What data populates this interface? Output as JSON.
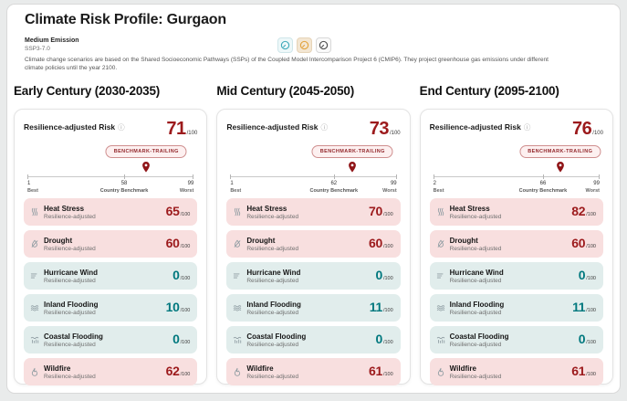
{
  "window": {
    "title": "Climate Risk Profile: Gurgaon"
  },
  "scenario": {
    "name": "Medium Emission",
    "code": "SSP3-7.0",
    "description": "Climate change scenarios are based on the Shared Socioeconomic Pathways (SSPs) of the Coupled Model Intercomparison Project 6 (CMIP6). They project greenhouse gas emissions under different climate policies until the year 2100.",
    "selector": [
      {
        "id": "low-emission",
        "icon": "gauge-low-icon",
        "color": "#3fa9b9",
        "selected": false
      },
      {
        "id": "medium-emission",
        "icon": "gauge-medium-icon",
        "color": "#e2a23c",
        "selected": true
      },
      {
        "id": "high-emission",
        "icon": "gauge-high-icon",
        "color": "#4b4b4b",
        "selected": false
      }
    ]
  },
  "colors": {
    "score_red": "#9c1a1c",
    "value_teal": "#00787e",
    "row_high_bg": "#f8dfdf",
    "row_low_bg": "#e1edec",
    "pin": "#8f1417",
    "badge_text": "#93282c"
  },
  "cards": [
    {
      "heading": "Early Century (2030-2035)",
      "risk_title": "Resilience-adjusted Risk",
      "score": "71",
      "score_suffix": "/100",
      "badge": "BENCHMARK-TRAILING",
      "scale": {
        "min": "1",
        "min_label": "Best",
        "max": "99",
        "max_label": "Worst",
        "benchmark": "58",
        "benchmark_label": "Country Benchmark",
        "pin_value": 71
      },
      "rows": [
        {
          "icon": "heat-stress-icon",
          "title": "Heat Stress",
          "subtitle": "Resilience-adjusted",
          "value": "65",
          "suffix": "/100",
          "severity": "high"
        },
        {
          "icon": "drought-icon",
          "title": "Drought",
          "subtitle": "Resilience-adjusted",
          "value": "60",
          "suffix": "/100",
          "severity": "high"
        },
        {
          "icon": "hurricane-wind-icon",
          "title": "Hurricane Wind",
          "subtitle": "Resilience-adjusted",
          "value": "0",
          "suffix": "/100",
          "severity": "low"
        },
        {
          "icon": "inland-flooding-icon",
          "title": "Inland Flooding",
          "subtitle": "Resilience-adjusted",
          "value": "10",
          "suffix": "/100",
          "severity": "low"
        },
        {
          "icon": "coastal-flooding-icon",
          "title": "Coastal Flooding",
          "subtitle": "Resilience-adjusted",
          "value": "0",
          "suffix": "/100",
          "severity": "low"
        },
        {
          "icon": "wildfire-icon",
          "title": "Wildfire",
          "subtitle": "Resilience-adjusted",
          "value": "62",
          "suffix": "/100",
          "severity": "high"
        }
      ]
    },
    {
      "heading": "Mid Century (2045-2050)",
      "risk_title": "Resilience-adjusted Risk",
      "score": "73",
      "score_suffix": "/100",
      "badge": "BENCHMARK-TRAILING",
      "scale": {
        "min": "1",
        "min_label": "Best",
        "max": "99",
        "max_label": "Worst",
        "benchmark": "62",
        "benchmark_label": "Country Benchmark",
        "pin_value": 73
      },
      "rows": [
        {
          "icon": "heat-stress-icon",
          "title": "Heat Stress",
          "subtitle": "Resilience-adjusted",
          "value": "70",
          "suffix": "/100",
          "severity": "high"
        },
        {
          "icon": "drought-icon",
          "title": "Drought",
          "subtitle": "Resilience-adjusted",
          "value": "60",
          "suffix": "/100",
          "severity": "high"
        },
        {
          "icon": "hurricane-wind-icon",
          "title": "Hurricane Wind",
          "subtitle": "Resilience-adjusted",
          "value": "0",
          "suffix": "/100",
          "severity": "low"
        },
        {
          "icon": "inland-flooding-icon",
          "title": "Inland Flooding",
          "subtitle": "Resilience-adjusted",
          "value": "11",
          "suffix": "/100",
          "severity": "low"
        },
        {
          "icon": "coastal-flooding-icon",
          "title": "Coastal Flooding",
          "subtitle": "Resilience-adjusted",
          "value": "0",
          "suffix": "/100",
          "severity": "low"
        },
        {
          "icon": "wildfire-icon",
          "title": "Wildfire",
          "subtitle": "Resilience-adjusted",
          "value": "61",
          "suffix": "/100",
          "severity": "high"
        }
      ]
    },
    {
      "heading": "End Century (2095-2100)",
      "risk_title": "Resilience-adjusted Risk",
      "score": "76",
      "score_suffix": "/100",
      "badge": "BENCHMARK-TRAILING",
      "scale": {
        "min": "2",
        "min_label": "Best",
        "max": "99",
        "max_label": "Worst",
        "benchmark": "66",
        "benchmark_label": "Country Benchmark",
        "pin_value": 76
      },
      "rows": [
        {
          "icon": "heat-stress-icon",
          "title": "Heat Stress",
          "subtitle": "Resilience-adjusted",
          "value": "82",
          "suffix": "/100",
          "severity": "high"
        },
        {
          "icon": "drought-icon",
          "title": "Drought",
          "subtitle": "Resilience-adjusted",
          "value": "60",
          "suffix": "/100",
          "severity": "high"
        },
        {
          "icon": "hurricane-wind-icon",
          "title": "Hurricane Wind",
          "subtitle": "Resilience-adjusted",
          "value": "0",
          "suffix": "/100",
          "severity": "low"
        },
        {
          "icon": "inland-flooding-icon",
          "title": "Inland Flooding",
          "subtitle": "Resilience-adjusted",
          "value": "11",
          "suffix": "/100",
          "severity": "low"
        },
        {
          "icon": "coastal-flooding-icon",
          "title": "Coastal Flooding",
          "subtitle": "Resilience-adjusted",
          "value": "0",
          "suffix": "/100",
          "severity": "low"
        },
        {
          "icon": "wildfire-icon",
          "title": "Wildfire",
          "subtitle": "Resilience-adjusted",
          "value": "61",
          "suffix": "/100",
          "severity": "high"
        }
      ]
    }
  ]
}
